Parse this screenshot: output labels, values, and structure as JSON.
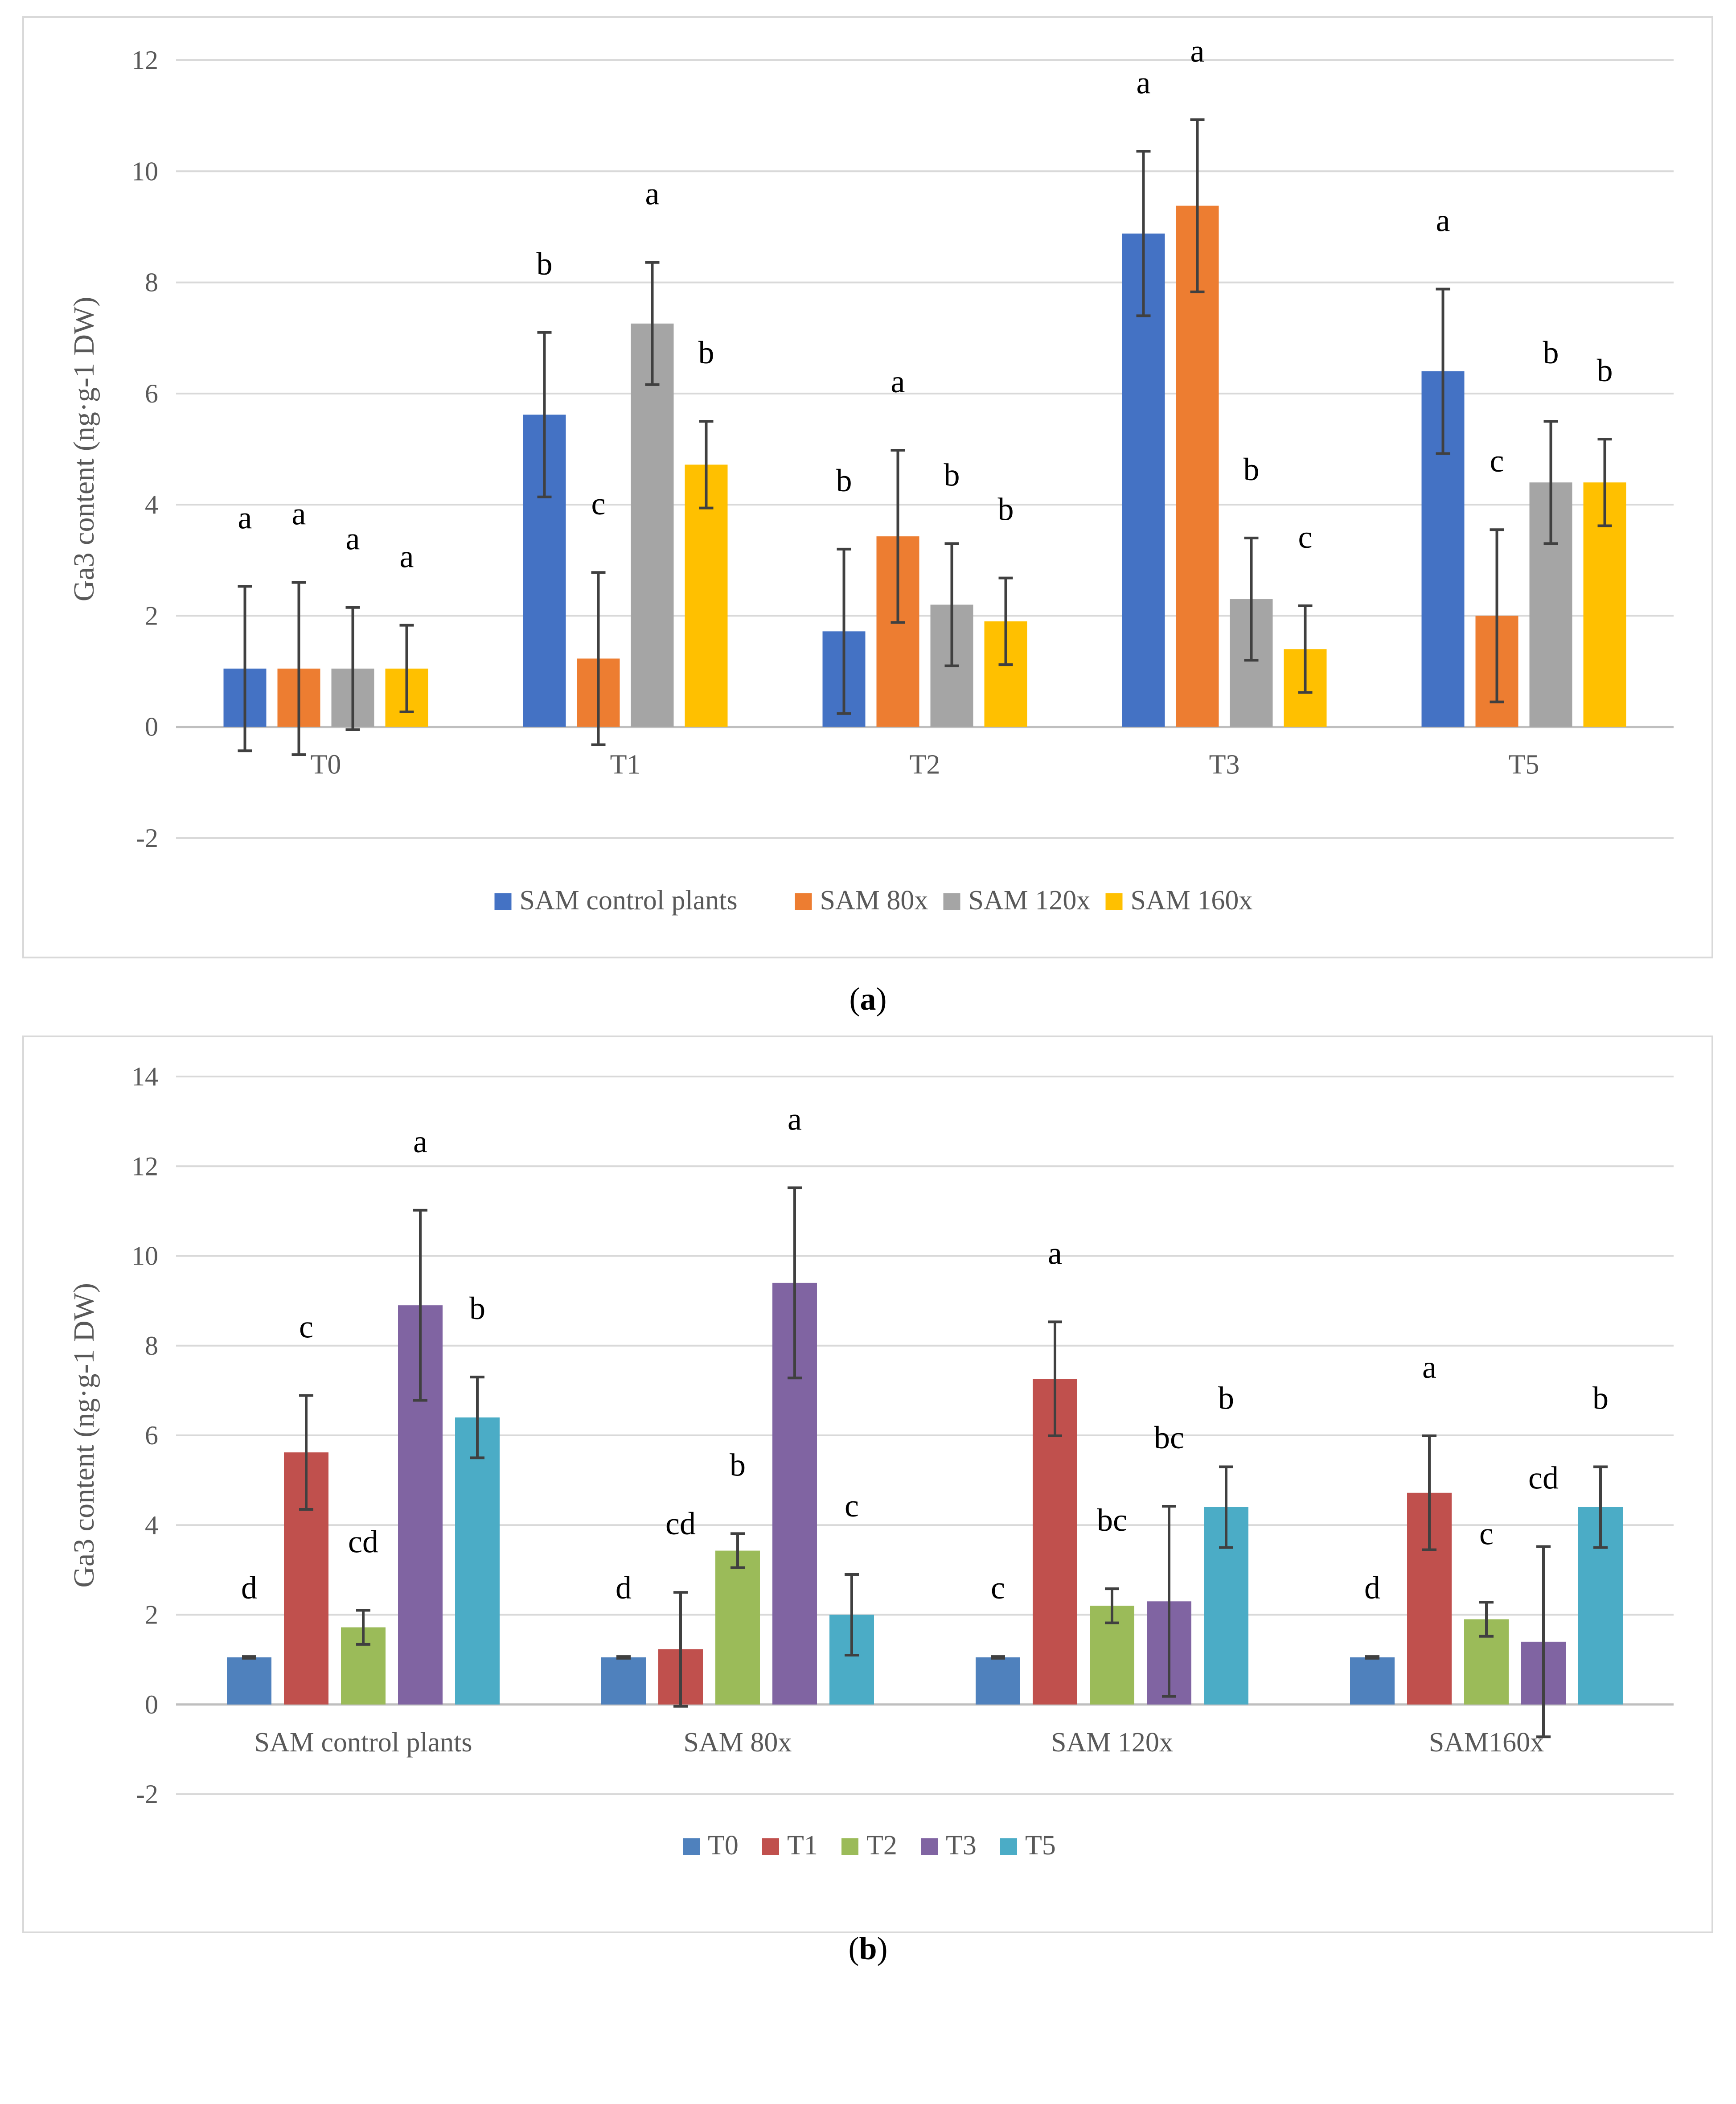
{
  "chart_data": [
    {
      "type": "bar",
      "panel_label": "a",
      "title": "",
      "xlabel": "",
      "ylabel": "Ga3 content (ng·g-1 DW)",
      "ylim": [
        -2,
        12
      ],
      "yticks": [
        -2,
        0,
        2,
        4,
        6,
        8,
        10,
        12
      ],
      "grid": true,
      "legend_position": "bottom",
      "categories": [
        "T0",
        "T1",
        "T2",
        "T3",
        "T5"
      ],
      "series": [
        {
          "name": "SAM control plants",
          "color": "#4472C4",
          "values": [
            1.05,
            5.62,
            1.72,
            8.88,
            6.4
          ],
          "errors": [
            1.48,
            1.48,
            1.48,
            1.48,
            1.48
          ],
          "letters": [
            "a",
            "b",
            "b",
            "a",
            "a"
          ]
        },
        {
          "name": "SAM 80x",
          "color": "#ED7D31",
          "values": [
            1.05,
            1.23,
            3.43,
            9.38,
            2.0
          ],
          "errors": [
            1.55,
            1.55,
            1.55,
            1.55,
            1.55
          ],
          "letters": [
            "a",
            "c",
            "a",
            "a",
            "c"
          ]
        },
        {
          "name": "SAM 120x",
          "color": "#A5A5A5",
          "values": [
            1.05,
            7.26,
            2.2,
            2.3,
            4.4
          ],
          "errors": [
            1.1,
            1.1,
            1.1,
            1.1,
            1.1
          ],
          "letters": [
            "a",
            "a",
            "b",
            "b",
            "b"
          ]
        },
        {
          "name": "SAM 160x",
          "color": "#FFC000",
          "values": [
            1.05,
            4.72,
            1.9,
            1.4,
            4.4
          ],
          "errors": [
            0.78,
            0.78,
            0.78,
            0.78,
            0.78
          ],
          "letters": [
            "a",
            "b",
            "b",
            "c",
            "b"
          ]
        }
      ]
    },
    {
      "type": "bar",
      "panel_label": "b",
      "title": "",
      "xlabel": "",
      "ylabel": "Ga3 content (ng·g-1 DW)",
      "ylim": [
        -2,
        14
      ],
      "yticks": [
        -2,
        0,
        2,
        4,
        6,
        8,
        10,
        12,
        14
      ],
      "grid": true,
      "legend_position": "bottom",
      "categories": [
        "SAM control plants",
        "SAM 80x",
        "SAM 120x",
        "SAM160x"
      ],
      "series": [
        {
          "name": "T0",
          "color": "#4F81BD",
          "values": [
            1.05,
            1.05,
            1.05,
            1.05
          ],
          "errors": [
            0.02,
            0.02,
            0.02,
            0.02
          ],
          "letters": [
            "d",
            "d",
            "c",
            "d"
          ]
        },
        {
          "name": "T1",
          "color": "#C0504D",
          "values": [
            5.62,
            1.23,
            7.26,
            4.72
          ],
          "errors": [
            1.27,
            1.27,
            1.27,
            1.27
          ],
          "letters": [
            "c",
            "cd",
            "a",
            "a"
          ]
        },
        {
          "name": "T2",
          "color": "#9BBB59",
          "values": [
            1.72,
            3.43,
            2.2,
            1.9
          ],
          "errors": [
            0.38,
            0.38,
            0.38,
            0.38
          ],
          "letters": [
            "cd",
            "b",
            "bc",
            "c"
          ]
        },
        {
          "name": "T3",
          "color": "#8064A2",
          "values": [
            8.9,
            9.4,
            2.3,
            1.4
          ],
          "errors": [
            2.12,
            2.12,
            2.12,
            2.12
          ],
          "letters": [
            "a",
            "a",
            "bc",
            "cd"
          ]
        },
        {
          "name": "T5",
          "color": "#4BACC6",
          "values": [
            6.4,
            2.0,
            4.4,
            4.4
          ],
          "errors": [
            0.9,
            0.9,
            0.9,
            0.9
          ],
          "letters": [
            "b",
            "c",
            "b",
            "b"
          ]
        }
      ]
    }
  ],
  "captions": {
    "a": "a",
    "b": "b"
  }
}
